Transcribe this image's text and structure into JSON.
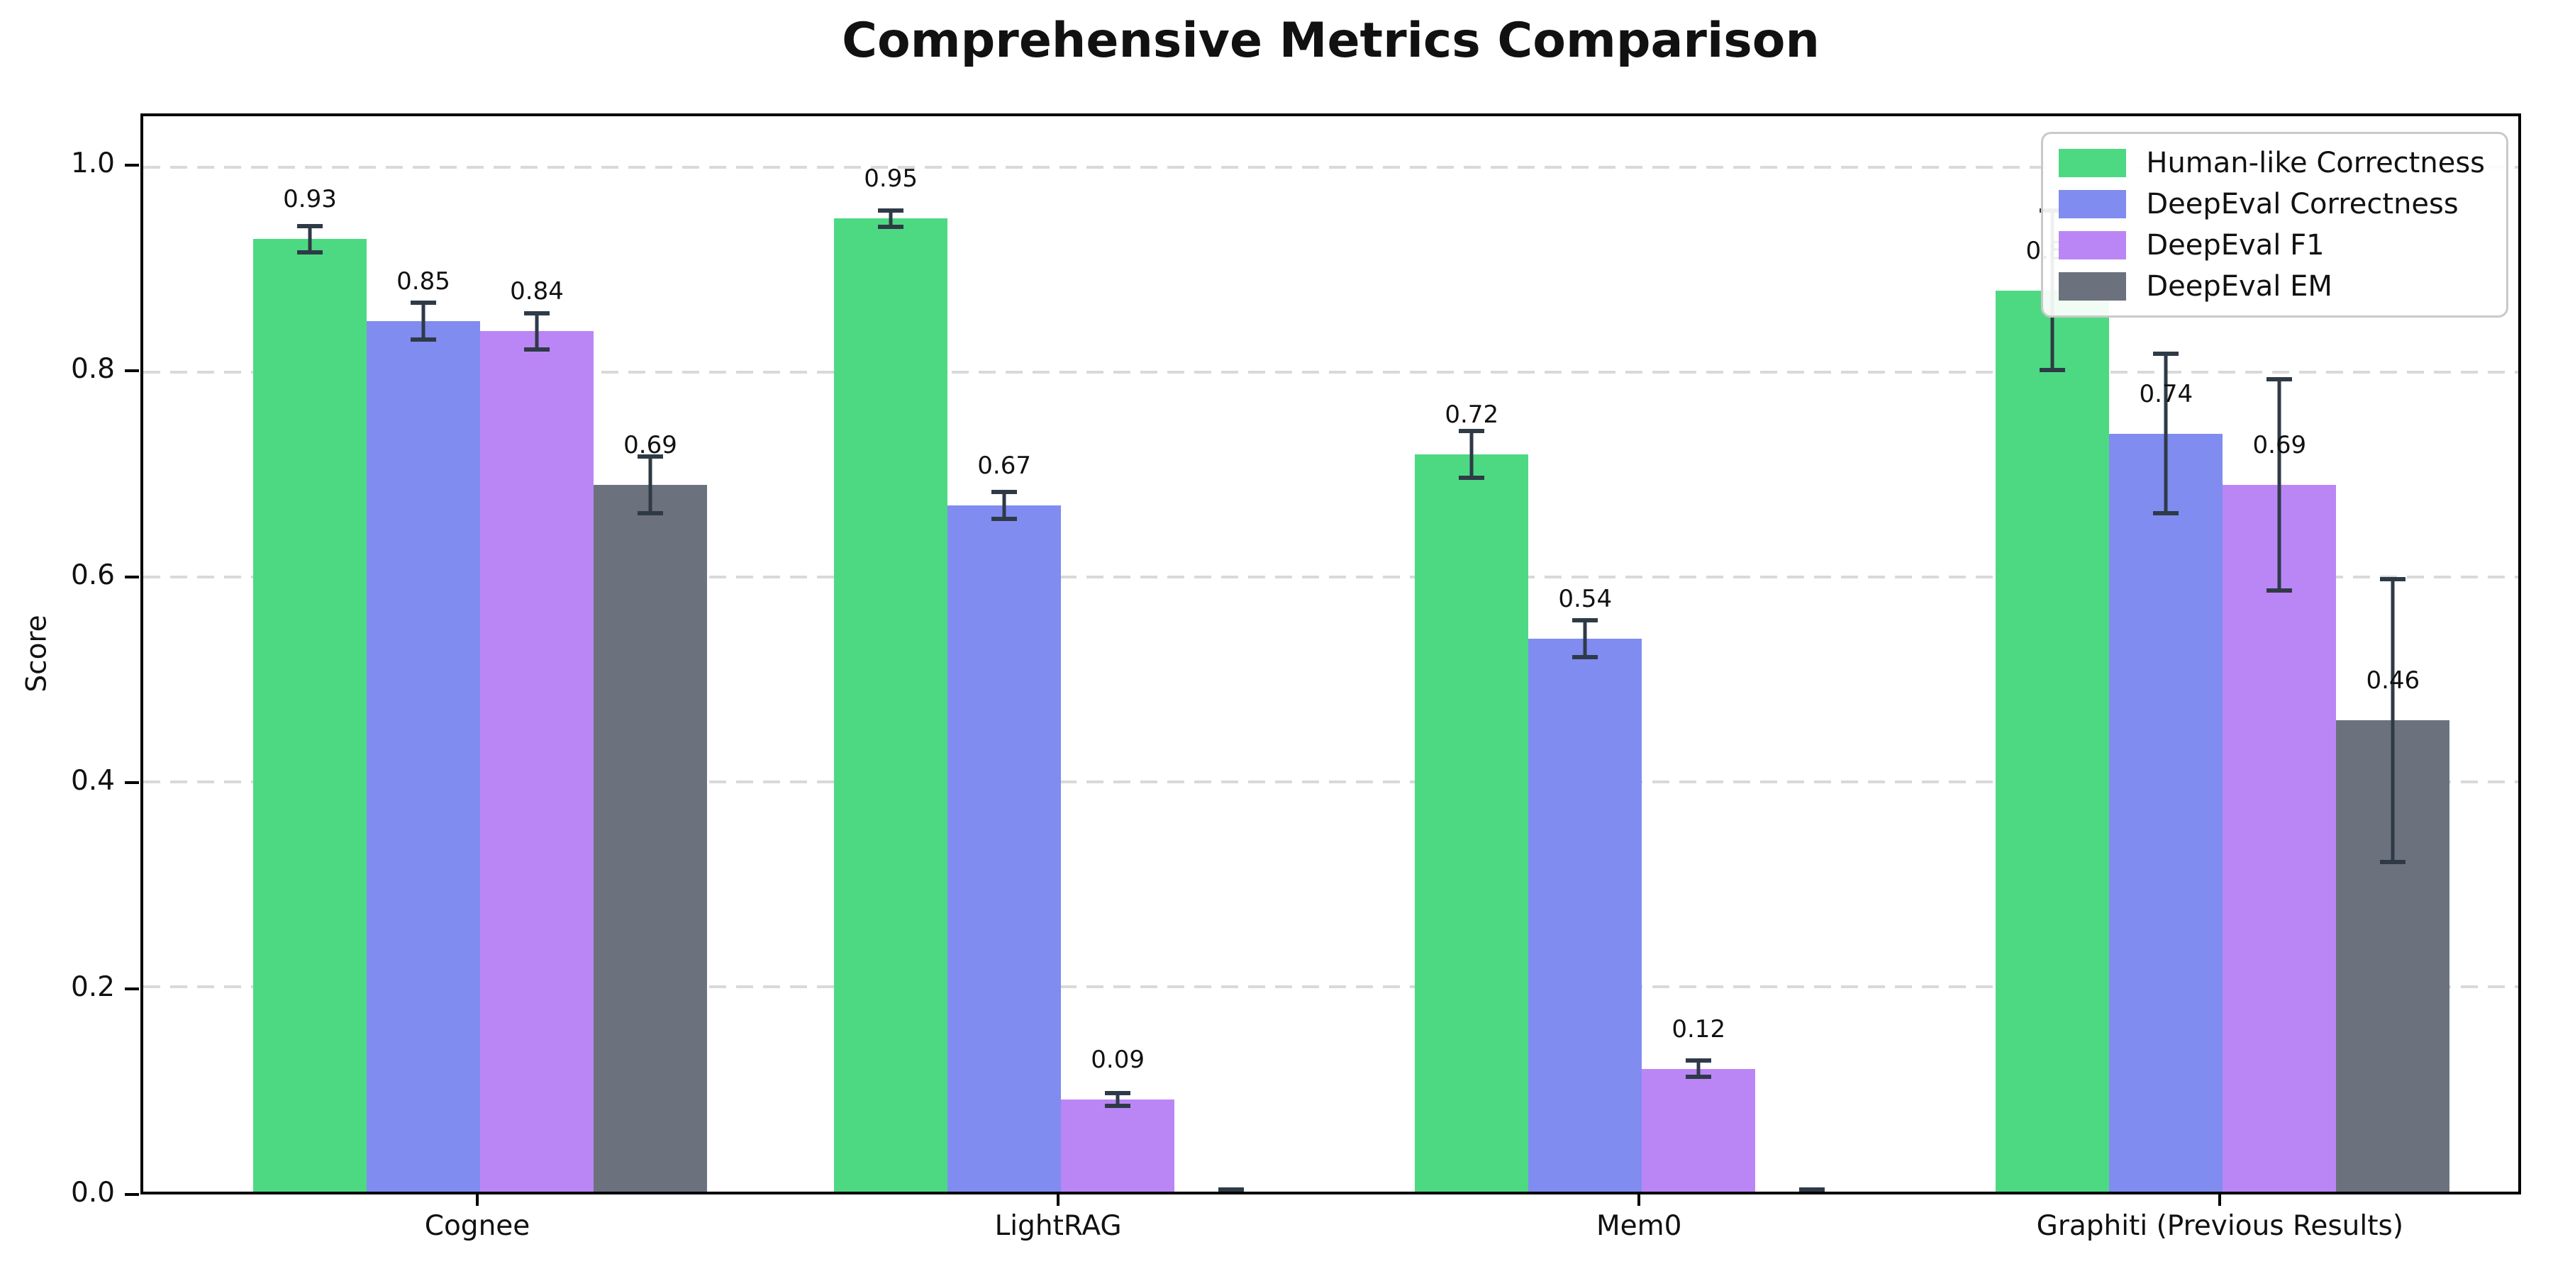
{
  "figure": {
    "title": "Comprehensive Metrics Comparison",
    "ylabel": "Score"
  },
  "chart_data": {
    "type": "bar",
    "title": "Comprehensive Metrics Comparison",
    "xlabel": "",
    "ylabel": "Score",
    "categories": [
      "Cognee",
      "LightRAG",
      "Mem0",
      "Graphiti (Previous Results)"
    ],
    "series": [
      {
        "name": "Human-like Correctness",
        "color": "#4dd982",
        "values": [
          0.93,
          0.95,
          0.72,
          0.88
        ],
        "errors": [
          0.015,
          0.01,
          0.025,
          0.08
        ],
        "labels": [
          "0.93",
          "0.95",
          "0.72",
          "0.88"
        ]
      },
      {
        "name": "DeepEval Correctness",
        "color": "#808cf0",
        "values": [
          0.85,
          0.67,
          0.54,
          0.74
        ],
        "errors": [
          0.02,
          0.015,
          0.02,
          0.08
        ],
        "labels": [
          "0.85",
          "0.67",
          "0.54",
          "0.74"
        ]
      },
      {
        "name": "DeepEval F1",
        "color": "#ba86f5",
        "values": [
          0.84,
          0.09,
          0.12,
          0.69
        ],
        "errors": [
          0.02,
          0.008,
          0.01,
          0.105
        ],
        "labels": [
          "0.84",
          "0.09",
          "0.12",
          "0.69"
        ]
      },
      {
        "name": "DeepEval EM",
        "color": "#6b727d",
        "values": [
          0.69,
          0.0,
          0.0,
          0.46
        ],
        "errors": [
          0.03,
          0.004,
          0.004,
          0.14
        ],
        "labels": [
          "0.69",
          "",
          "",
          "0.46"
        ]
      }
    ],
    "yticks": [
      "1.0",
      "0.8",
      "0.6",
      "0.4",
      "0.2",
      "0.0"
    ],
    "ylim": [
      0,
      1.05
    ],
    "grid": {
      "axis": "y",
      "style": "dashed",
      "color": "#d9d9d9"
    },
    "legend_position": "upper right",
    "error_bar_color": "#2f3a47",
    "bar_edge": "none",
    "background": "#ffffff"
  }
}
